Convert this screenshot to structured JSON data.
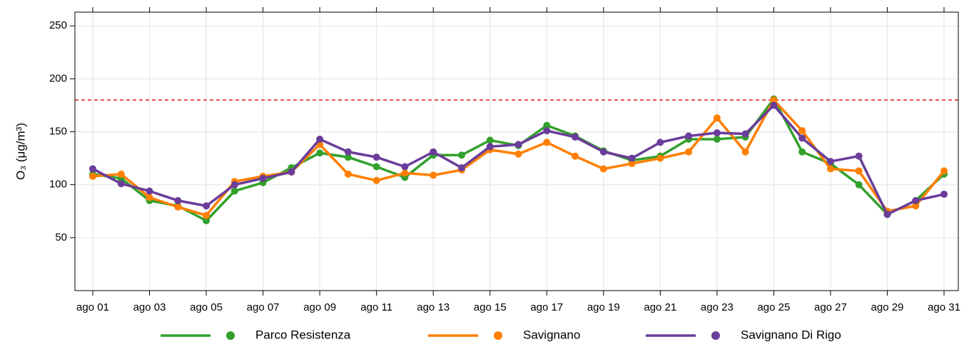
{
  "chart_data": {
    "type": "line",
    "ylabel": "O₃ (μg/m³)",
    "categories": [
      "ago 01",
      null,
      "ago 03",
      null,
      "ago 05",
      null,
      "ago 07",
      null,
      "ago 09",
      null,
      "ago 11",
      null,
      "ago 13",
      null,
      "ago 15",
      null,
      "ago 17",
      null,
      "ago 19",
      null,
      "ago 21",
      null,
      "ago 23",
      null,
      "ago 25",
      null,
      "ago 27",
      null,
      "ago 29",
      null,
      "ago 31"
    ],
    "series": [
      {
        "name": "Parco Resistenza",
        "color": "#33a02c",
        "values": [
          110,
          106,
          85,
          80,
          66,
          94,
          102,
          116,
          130,
          126,
          117,
          107,
          128,
          128,
          142,
          137,
          156,
          146,
          132,
          123,
          127,
          143,
          143,
          145,
          181,
          131,
          120,
          100,
          72,
          85,
          110
        ]
      },
      {
        "name": "Savignano",
        "color": "#ff7f00",
        "values": [
          108,
          110,
          88,
          79,
          71,
          103,
          108,
          112,
          138,
          110,
          104,
          111,
          109,
          114,
          133,
          129,
          140,
          127,
          115,
          120,
          125,
          131,
          163,
          131,
          180,
          151,
          115,
          113,
          75,
          80,
          113
        ]
      },
      {
        "name": "Savignano Di Rigo",
        "color": "#6a3d9a",
        "values": [
          115,
          101,
          94,
          85,
          80,
          100,
          106,
          112,
          143,
          131,
          126,
          117,
          131,
          116,
          136,
          138,
          151,
          145,
          131,
          125,
          140,
          146,
          149,
          148,
          175,
          144,
          122,
          127,
          72,
          85,
          91
        ]
      }
    ],
    "ylim": [
      0,
      263
    ],
    "yticks": [
      50,
      100,
      150,
      200,
      250
    ],
    "grid": true,
    "hline": {
      "value": 180,
      "color": "#e41a1c"
    },
    "legend": "bottom"
  }
}
